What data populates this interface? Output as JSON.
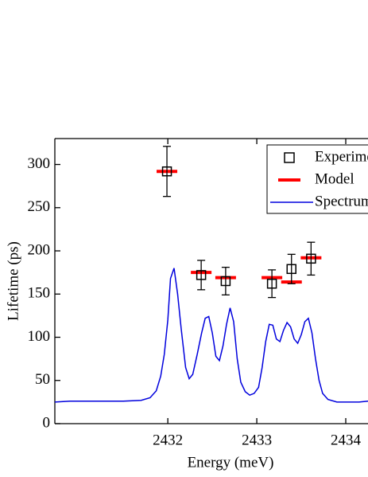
{
  "chart_data": {
    "type": "scatter",
    "xlabel": "Energy (meV)",
    "ylabel": "Lifetime (ps)",
    "xlim": [
      2430.73,
      2434.25
    ],
    "ylim": [
      0,
      330
    ],
    "xticks": [
      2432,
      2433,
      2434
    ],
    "yticks": [
      0,
      50,
      100,
      150,
      200,
      250,
      300
    ],
    "legend": "upper right",
    "series": [
      {
        "name": "Experiment",
        "color": "#000000",
        "marker": "square",
        "x": [
          2431.99,
          2432.375,
          2432.65,
          2433.17,
          2433.39,
          2433.61
        ],
        "values": [
          292,
          172,
          165,
          162,
          179,
          191
        ],
        "errors": [
          29,
          17,
          16,
          16,
          17,
          19
        ]
      },
      {
        "name": "Model",
        "color": "#ff0000",
        "marker": "dash",
        "x": [
          2431.99,
          2432.375,
          2432.65,
          2433.17,
          2433.39,
          2433.61
        ],
        "values": [
          292,
          175,
          169,
          169,
          164,
          192
        ]
      },
      {
        "name": "Spectrum",
        "color": "#0000dd",
        "marker": "line",
        "x": [
          2430.73,
          2430.9,
          2431.1,
          2431.3,
          2431.5,
          2431.7,
          2431.8,
          2431.87,
          2431.92,
          2431.96,
          2432.0,
          2432.03,
          2432.07,
          2432.11,
          2432.15,
          2432.2,
          2432.24,
          2432.28,
          2432.33,
          2432.38,
          2432.42,
          2432.46,
          2432.5,
          2432.54,
          2432.58,
          2432.62,
          2432.66,
          2432.7,
          2432.74,
          2432.78,
          2432.82,
          2432.87,
          2432.92,
          2432.97,
          2433.02,
          2433.06,
          2433.1,
          2433.14,
          2433.18,
          2433.22,
          2433.26,
          2433.3,
          2433.34,
          2433.38,
          2433.42,
          2433.46,
          2433.5,
          2433.54,
          2433.58,
          2433.62,
          2433.66,
          2433.7,
          2433.74,
          2433.8,
          2433.9,
          2434.0,
          2434.15,
          2434.25
        ],
        "values": [
          25,
          26,
          26,
          26,
          26,
          27,
          30,
          38,
          55,
          80,
          120,
          168,
          180,
          150,
          110,
          65,
          52,
          57,
          80,
          105,
          122,
          124,
          105,
          78,
          73,
          90,
          115,
          134,
          118,
          75,
          48,
          37,
          33,
          35,
          42,
          65,
          95,
          115,
          114,
          98,
          95,
          108,
          117,
          112,
          98,
          93,
          103,
          118,
          122,
          105,
          75,
          50,
          35,
          28,
          25,
          25,
          25,
          26
        ]
      }
    ]
  }
}
